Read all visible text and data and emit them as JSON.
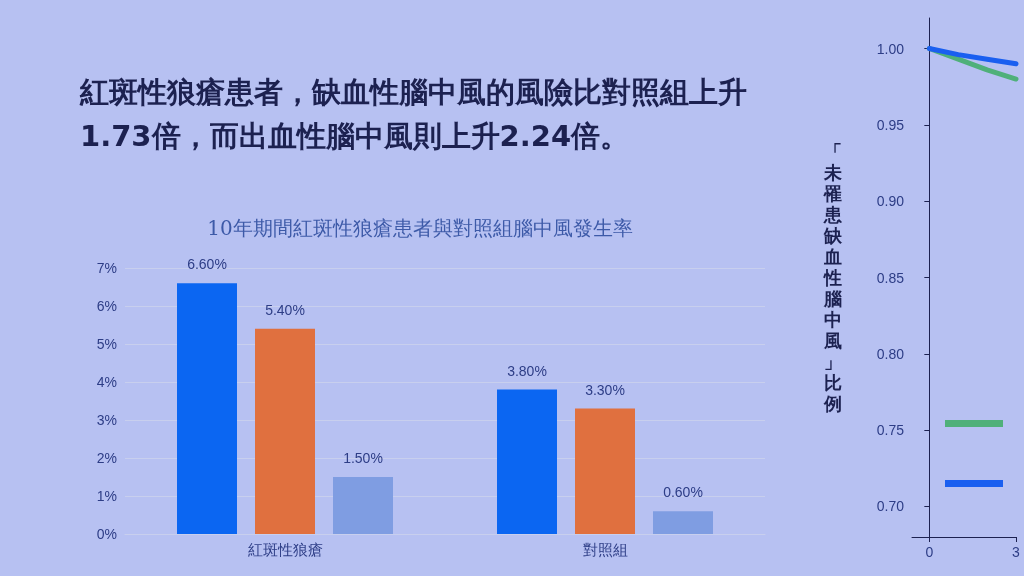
{
  "chart_data": [
    {
      "type": "bar",
      "title": "10年期間紅斑性狼瘡患者與對照組腦中風發生率",
      "annotations": [
        "紅斑性狼瘡患者，缺血性腦中風的風險比對照組上升1.73倍，而出血性腦中風則上升2.24倍。"
      ],
      "categories": [
        "紅斑性狼瘡",
        "對照組"
      ],
      "series": [
        {
          "color": "#0b66f2",
          "values": [
            6.6,
            3.8
          ],
          "value_labels": [
            "6.60%",
            "3.80%"
          ]
        },
        {
          "color": "#e0703f",
          "values": [
            5.4,
            3.3
          ],
          "value_labels": [
            "5.40%",
            "3.30%"
          ]
        },
        {
          "color": "#7f9de2",
          "values": [
            1.5,
            0.6
          ],
          "value_labels": [
            "1.50%",
            "0.60%"
          ]
        }
      ],
      "ylim": [
        0,
        7
      ],
      "yticks": [
        {
          "value": 0,
          "label": "0%"
        },
        {
          "value": 1,
          "label": "1%"
        },
        {
          "value": 2,
          "label": "2%"
        },
        {
          "value": 3,
          "label": "3%"
        },
        {
          "value": 4,
          "label": "4%"
        },
        {
          "value": 5,
          "label": "5%"
        },
        {
          "value": 6,
          "label": "6%"
        },
        {
          "value": 7,
          "label": "7%"
        }
      ],
      "grid": "y"
    },
    {
      "type": "line",
      "ylabel": "「未罹患缺血性腦中風」比例",
      "x": [
        0,
        1,
        2,
        3
      ],
      "series": [
        {
          "color": "#4fb07a",
          "values": [
            1.0,
            0.993,
            0.986,
            0.98
          ]
        },
        {
          "color": "#1a5ff0",
          "values": [
            1.0,
            0.996,
            0.993,
            0.99
          ]
        }
      ],
      "xlim": [
        -0.6,
        3
      ],
      "xticks": [
        0,
        3
      ],
      "ylim": [
        0.68,
        1.02
      ],
      "yticks": [
        {
          "value": 0.7,
          "label": "0.70"
        },
        {
          "value": 0.75,
          "label": "0.75"
        },
        {
          "value": 0.8,
          "label": "0.80"
        },
        {
          "value": 0.85,
          "label": "0.85"
        },
        {
          "value": 0.9,
          "label": "0.90"
        },
        {
          "value": 0.95,
          "label": "0.95"
        },
        {
          "value": 1.0,
          "label": "1.00"
        }
      ],
      "grid": false,
      "marker": "none",
      "line_style": "solid"
    }
  ]
}
